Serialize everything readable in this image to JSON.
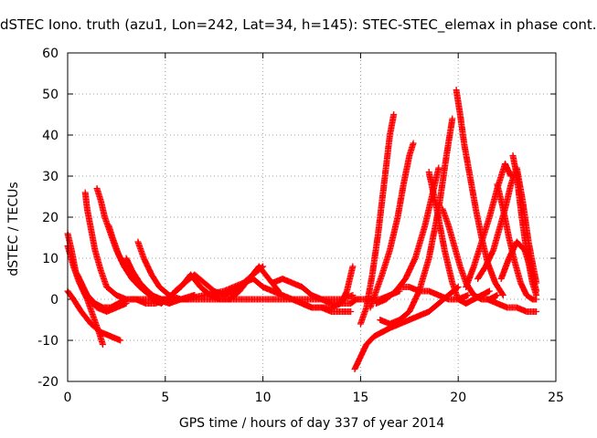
{
  "chart_data": {
    "type": "scatter",
    "title": "dSTEC Iono. truth (azu1, Lon=242, Lat=34, h=145): STEC-STEC_elemax in phase cont.",
    "xlabel": "GPS time / hours of day 337 of year 2014",
    "ylabel": "dSTEC  / TECUs",
    "xlim": [
      0,
      25
    ],
    "ylim": [
      -20,
      60
    ],
    "xticks": [
      "0",
      "5",
      "10",
      "15",
      "20",
      "25"
    ],
    "yticks": [
      "-20",
      "-10",
      "0",
      "10",
      "20",
      "30",
      "40",
      "50",
      "60"
    ],
    "grid": true,
    "marker": "+",
    "color": "#ff0000",
    "series": [
      {
        "x": [
          0.0,
          0.2,
          0.4,
          0.7,
          1.0,
          1.3,
          1.6,
          1.8
        ],
        "y": [
          16,
          12,
          7,
          3,
          0,
          -4,
          -8,
          -11
        ]
      },
      {
        "x": [
          0.0,
          0.3,
          0.7,
          1.2,
          1.7,
          2.2,
          2.7
        ],
        "y": [
          2,
          0,
          -3,
          -6,
          -8,
          -9,
          -10
        ]
      },
      {
        "x": [
          0.0,
          0.3,
          0.6,
          1.0,
          1.4,
          1.8,
          2.2,
          2.6,
          3.0,
          3.5,
          4.0,
          4.5,
          5.0
        ],
        "y": [
          13,
          8,
          4,
          1,
          -1,
          -2,
          -2,
          -1,
          0,
          0,
          -1,
          -1,
          0
        ]
      },
      {
        "x": [
          0.5,
          0.8,
          1.1,
          1.5,
          2.0,
          2.5,
          3.0
        ],
        "y": [
          6,
          3,
          0,
          -2,
          -3,
          -2,
          -1
        ]
      },
      {
        "x": [
          0.9,
          1.0,
          1.2,
          1.4,
          1.7,
          2.0,
          2.5,
          3.0,
          3.5,
          4.0,
          4.5,
          5.0
        ],
        "y": [
          26,
          22,
          17,
          12,
          7,
          3,
          1,
          0,
          0,
          0,
          0,
          0
        ]
      },
      {
        "x": [
          1.5,
          1.7,
          1.9,
          2.2,
          2.5,
          2.9,
          3.3,
          3.8,
          4.3,
          4.8,
          5.3,
          6.0
        ],
        "y": [
          27,
          24,
          20,
          16,
          12,
          8,
          5,
          3,
          1,
          0,
          0,
          0
        ]
      },
      {
        "x": [
          2.1,
          2.3,
          2.6,
          2.9,
          3.3,
          3.7,
          4.2,
          4.7,
          5.2,
          5.7,
          6.2
        ],
        "y": [
          18,
          15,
          11,
          8,
          5,
          3,
          1,
          0,
          -1,
          0,
          0
        ]
      },
      {
        "x": [
          3.0,
          3.3,
          3.7,
          4.1,
          4.6,
          5.2,
          5.8,
          6.5
        ],
        "y": [
          10,
          7,
          4,
          2,
          0,
          -1,
          0,
          1
        ]
      },
      {
        "x": [
          3.6,
          3.9,
          4.3,
          4.7,
          5.2,
          5.8,
          6.5
        ],
        "y": [
          14,
          10,
          6,
          3,
          1,
          0,
          1
        ]
      },
      {
        "x": [
          4.3,
          4.8,
          5.3,
          5.8,
          6.3,
          6.8,
          7.3,
          7.8,
          8.3,
          8.8,
          9.3,
          9.8,
          10.3,
          10.8
        ],
        "y": [
          0,
          -1,
          1,
          3,
          6,
          3,
          1,
          0,
          0,
          2,
          5,
          8,
          5,
          2
        ]
      },
      {
        "x": [
          5.5,
          6.0,
          6.5,
          7.0,
          7.5,
          8.0,
          8.5,
          9.0,
          9.5,
          10.0
        ],
        "y": [
          2,
          4,
          6,
          4,
          2,
          1,
          2,
          4,
          6,
          8
        ]
      },
      {
        "x": [
          6.0,
          7.0,
          8.0,
          9.0,
          10.0,
          11.0,
          12.0,
          13.0,
          14.0,
          14.6
        ],
        "y": [
          0,
          0,
          0,
          0,
          0,
          0,
          0,
          0,
          0,
          1
        ]
      },
      {
        "x": [
          5.0,
          6.0,
          7.0,
          8.0,
          9.0,
          9.5,
          10.0,
          10.5,
          11.0,
          11.5,
          12.0,
          12.5,
          13.0,
          13.5,
          14.0,
          14.5
        ],
        "y": [
          0,
          0,
          1,
          2,
          4,
          5,
          3,
          2,
          1,
          0,
          -1,
          -2,
          -2,
          -3,
          -3,
          -3
        ]
      },
      {
        "x": [
          10.5,
          11.0,
          11.5,
          12.0,
          12.5,
          13.0,
          13.5,
          14.0,
          14.5,
          14.8
        ],
        "y": [
          4,
          5,
          4,
          3,
          1,
          0,
          -1,
          -1,
          -1,
          0
        ]
      },
      {
        "x": [
          12.0,
          12.5,
          13.0,
          13.5,
          14.0,
          14.3,
          14.6
        ],
        "y": [
          -1,
          -2,
          -2,
          -2,
          -1,
          2,
          8
        ]
      },
      {
        "x": [
          14.7,
          15.0,
          15.3,
          15.7,
          16.1,
          16.5,
          17.0,
          17.5,
          18.0,
          18.5,
          19.0,
          19.5,
          20.0
        ],
        "y": [
          -17,
          -14,
          -11,
          -9,
          -8,
          -7,
          -6,
          -5,
          -4,
          -3,
          -1,
          1,
          3
        ]
      },
      {
        "x": [
          15.0,
          15.3,
          15.6,
          15.9,
          16.2,
          16.5,
          16.7
        ],
        "y": [
          -6,
          -2,
          6,
          16,
          28,
          40,
          45
        ]
      },
      {
        "x": [
          15.5,
          15.8,
          16.1,
          16.5,
          16.9,
          17.2,
          17.5,
          17.7
        ],
        "y": [
          -2,
          2,
          6,
          12,
          20,
          28,
          35,
          38
        ]
      },
      {
        "x": [
          14.6,
          15.0,
          15.5,
          16.0,
          16.5,
          17.0
        ],
        "y": [
          0,
          0,
          0,
          0,
          1,
          2
        ]
      },
      {
        "x": [
          16.0,
          16.5,
          17.0,
          17.5,
          18.0,
          18.5,
          19.0,
          19.4,
          19.7
        ],
        "y": [
          -5,
          -6,
          -5,
          -3,
          2,
          10,
          22,
          35,
          44
        ]
      },
      {
        "x": [
          15.8,
          16.3,
          16.8,
          17.3,
          17.8,
          18.3,
          18.7,
          19.0
        ],
        "y": [
          -1,
          0,
          2,
          5,
          10,
          18,
          26,
          32
        ]
      },
      {
        "x": [
          17.0,
          17.5,
          18.0,
          18.5,
          19.0,
          19.5,
          20.0,
          20.5
        ],
        "y": [
          3,
          3,
          2,
          2,
          1,
          0,
          0,
          1
        ]
      },
      {
        "x": [
          18.5,
          18.9,
          19.3,
          19.7,
          20.0,
          20.4,
          20.8,
          21.2,
          21.6
        ],
        "y": [
          31,
          22,
          12,
          4,
          0,
          -1,
          0,
          1,
          2
        ]
      },
      {
        "x": [
          19.2,
          19.5,
          19.8,
          20.1,
          20.4,
          20.8,
          21.2,
          21.6,
          22.0
        ],
        "y": [
          22,
          18,
          13,
          8,
          4,
          1,
          0,
          0,
          1
        ]
      },
      {
        "x": [
          19.9,
          20.1,
          20.3,
          20.6,
          20.9,
          21.2,
          21.5,
          21.9,
          22.3
        ],
        "y": [
          51,
          45,
          38,
          30,
          22,
          15,
          9,
          4,
          1
        ]
      },
      {
        "x": [
          20.4,
          20.8,
          21.2,
          21.6,
          22.0,
          22.4,
          22.7
        ],
        "y": [
          3,
          8,
          14,
          20,
          27,
          33,
          30
        ]
      },
      {
        "x": [
          21.0,
          21.4,
          21.8,
          22.1,
          22.4,
          22.7,
          23.0,
          23.3,
          23.6,
          24.0
        ],
        "y": [
          5,
          8,
          12,
          17,
          22,
          28,
          32,
          24,
          14,
          4
        ]
      },
      {
        "x": [
          22.0,
          22.3,
          22.6,
          22.9,
          23.2,
          23.5,
          23.8,
          24.0
        ],
        "y": [
          28,
          22,
          15,
          9,
          4,
          1,
          0,
          0
        ]
      },
      {
        "x": [
          22.8,
          23.0,
          23.2,
          23.4,
          23.6,
          23.8,
          24.0
        ],
        "y": [
          35,
          30,
          22,
          15,
          9,
          4,
          1
        ]
      },
      {
        "x": [
          21.5,
          22.0,
          22.5,
          23.0,
          23.5,
          24.0
        ],
        "y": [
          0,
          -1,
          -2,
          -2,
          -3,
          -3
        ]
      },
      {
        "x": [
          22.2,
          22.6,
          23.0,
          23.4,
          23.8,
          24.0
        ],
        "y": [
          5,
          10,
          14,
          12,
          6,
          2
        ]
      }
    ]
  }
}
